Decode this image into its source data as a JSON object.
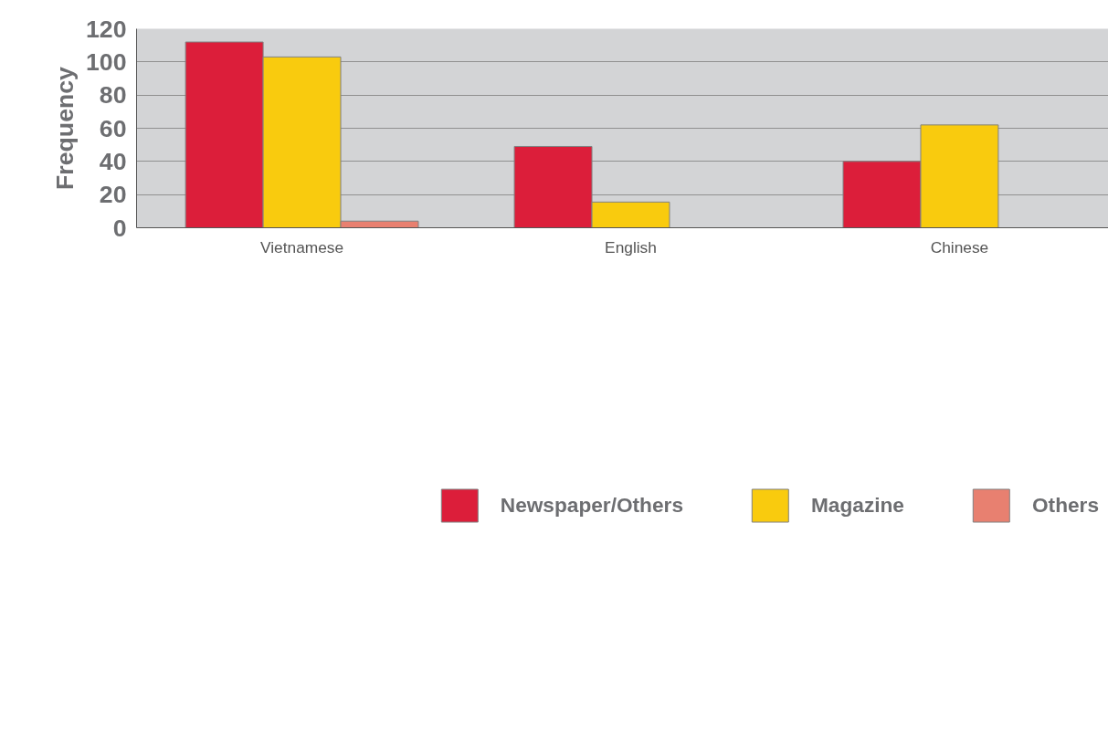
{
  "chart_data": {
    "type": "bar",
    "ylabel": "Frequency",
    "categories": [
      "Vietnamese",
      "English",
      "Chinese"
    ],
    "series": [
      {
        "name": "Newspaper/Others",
        "color": "#dc1e3a",
        "values": [
          112,
          49,
          40
        ]
      },
      {
        "name": "Magazine",
        "color": "#f9cb0e",
        "values": [
          103,
          15.5,
          62
        ]
      },
      {
        "name": "Others",
        "color": "#e88070",
        "values": [
          4,
          null,
          null
        ]
      }
    ],
    "ylim": [
      0,
      120
    ],
    "yticks": [
      0,
      20,
      40,
      60,
      80,
      100,
      120
    ],
    "grid": "y",
    "legend": "bottom"
  }
}
